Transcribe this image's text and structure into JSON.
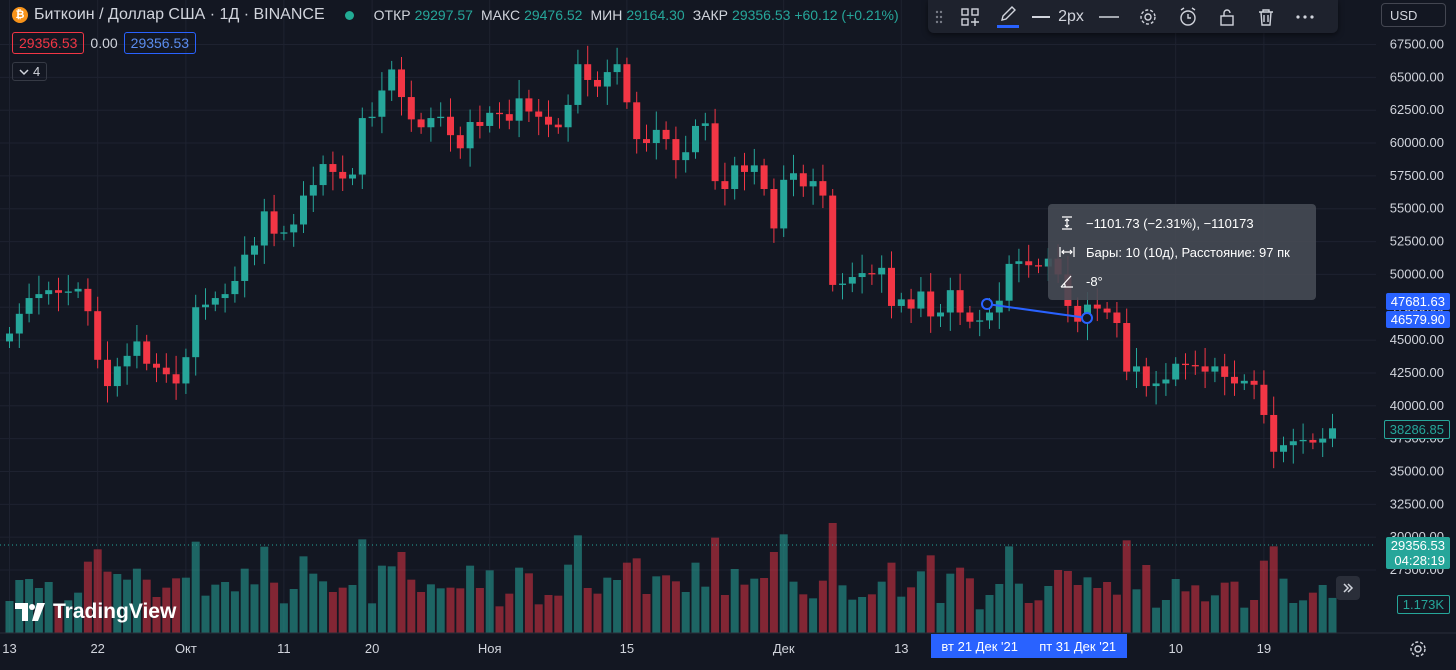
{
  "header": {
    "coin_glyph": "₿",
    "symbol_title": "Биткоин / Доллар США · 1Д · BINANCE",
    "ohlc": [
      {
        "key": "ОТКР",
        "value": "29297.57"
      },
      {
        "key": "МАКС",
        "value": "29476.52"
      },
      {
        "key": "МИН",
        "value": "29164.30"
      },
      {
        "key": "ЗАКР",
        "value": "29356.53 +60.12 (+0.21%)"
      }
    ],
    "bid": "29356.53",
    "spread": "0.00",
    "ask": "29356.53",
    "collapse_count": "4"
  },
  "toolbar": {
    "width_label": "2px"
  },
  "currency": "USD",
  "tooltip": {
    "line1": "−1101.73 (−2.31%), −110173",
    "line2": "Бары: 10 (10д), Расстояние: 97 пк",
    "line3": "-8°"
  },
  "price_labels": {
    "start": "47681.63",
    "end": "46579.90",
    "last": "38286.85",
    "current": "29356.53",
    "countdown": "04:28:19",
    "volume": "1.173K"
  },
  "logo": "TradingView",
  "chart_data": {
    "type": "candlestick",
    "y_ticks": [
      "67500.00",
      "65000.00",
      "62500.00",
      "60000.00",
      "57500.00",
      "55000.00",
      "52500.00",
      "50000.00",
      "47500.00",
      "45000.00",
      "42500.00",
      "40000.00",
      "37500.00",
      "35000.00",
      "32500.00",
      "30000.00",
      "27500.00"
    ],
    "ylim": [
      27000,
      68500
    ],
    "x_ticks": [
      {
        "label": "13",
        "i": 0
      },
      {
        "label": "22",
        "i": 9
      },
      {
        "label": "Окт",
        "i": 18
      },
      {
        "label": "11",
        "i": 28
      },
      {
        "label": "20",
        "i": 37
      },
      {
        "label": "Ноя",
        "i": 49
      },
      {
        "label": "15",
        "i": 63
      },
      {
        "label": "Дек",
        "i": 79
      },
      {
        "label": "13",
        "i": 91
      },
      {
        "label": "10",
        "i": 119
      },
      {
        "label": "19",
        "i": 128
      }
    ],
    "x_highlight": [
      {
        "label": "вт 21 Дек '21",
        "i": 99
      },
      {
        "label": "пт 31 Дек '21",
        "i": 109
      }
    ],
    "closes": [
      45500,
      47000,
      48200,
      48500,
      48800,
      48600,
      48700,
      48900,
      47200,
      43500,
      41500,
      43000,
      43800,
      44900,
      43200,
      42900,
      42400,
      41700,
      43700,
      47500,
      47700,
      48200,
      48500,
      49500,
      51500,
      52200,
      54800,
      53100,
      53200,
      53800,
      56000,
      56800,
      58400,
      57800,
      57300,
      57600,
      61900,
      62000,
      64000,
      65600,
      63500,
      61800,
      61200,
      61900,
      62000,
      60600,
      59600,
      61600,
      61300,
      62300,
      62200,
      61700,
      63400,
      62400,
      62000,
      61400,
      61200,
      62900,
      66000,
      64800,
      64300,
      65400,
      66000,
      63100,
      60300,
      60000,
      61000,
      60300,
      58700,
      59300,
      61300,
      61500,
      57100,
      56500,
      58300,
      57800,
      58300,
      56500,
      53500,
      57200,
      57700,
      56700,
      57100,
      56000,
      49200,
      49300,
      49800,
      50100,
      50000,
      50500,
      47600,
      48100,
      47400,
      48700,
      46800,
      47100,
      48800,
      47100,
      46400,
      46500,
      47100,
      48000,
      50800,
      51000,
      50700,
      50600,
      51200,
      50000,
      47600,
      46400,
      47700,
      47400,
      47100,
      46300,
      42600,
      43000,
      41500,
      41700,
      42000,
      43200,
      43100,
      43000,
      42600,
      43000,
      42200,
      41700,
      41900,
      41600,
      39300,
      36500,
      37000,
      37300,
      37400,
      37200,
      37500,
      38286
    ]
  }
}
